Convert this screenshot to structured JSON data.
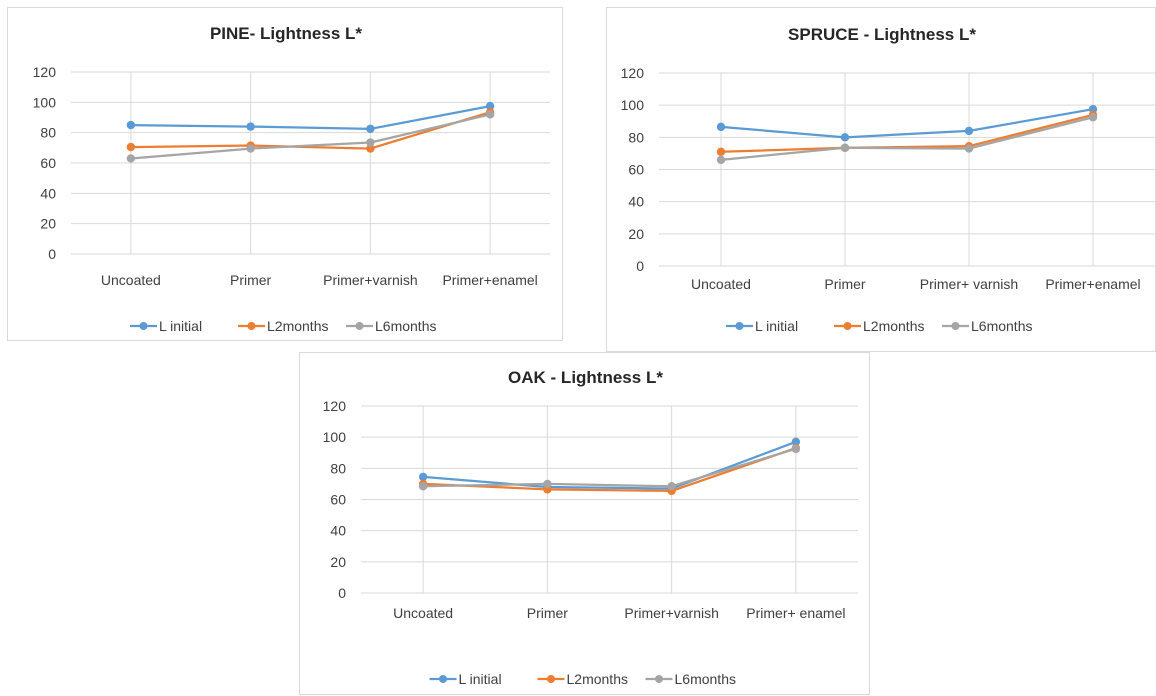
{
  "colors": {
    "L initial": "#5b9bd5",
    "L2months": "#ed7d31",
    "L6months": "#a5a5a5",
    "grid": "#d9d9d9"
  },
  "chart_data": [
    {
      "type": "line",
      "title": "PINE- Lightness L*",
      "categories": [
        "Uncoated",
        "Primer",
        "Primer+varnish",
        "Primer+enamel"
      ],
      "ylim": [
        0,
        120
      ],
      "yticks": [
        0,
        20,
        40,
        60,
        80,
        100,
        120
      ],
      "grid": true,
      "legend": "bottom",
      "series": [
        {
          "name": "L initial",
          "values": [
            85,
            84,
            82.5,
            97.5
          ]
        },
        {
          "name": "L2months",
          "values": [
            70.5,
            71.5,
            69.5,
            93.5
          ]
        },
        {
          "name": "L6months",
          "values": [
            63,
            69.5,
            73.5,
            92
          ]
        }
      ]
    },
    {
      "type": "line",
      "title": "SPRUCE - Lightness L*",
      "categories": [
        "Uncoated",
        "Primer",
        "Primer+ varnish",
        "Primer+enamel"
      ],
      "ylim": [
        0,
        120
      ],
      "yticks": [
        0,
        20,
        40,
        60,
        80,
        100,
        120
      ],
      "grid": true,
      "legend": "bottom",
      "series": [
        {
          "name": "L initial",
          "values": [
            86.5,
            80,
            84,
            97.5
          ]
        },
        {
          "name": "L2months",
          "values": [
            71,
            73.5,
            74.5,
            94
          ]
        },
        {
          "name": "L6months",
          "values": [
            66,
            73.5,
            73,
            92.5
          ]
        }
      ]
    },
    {
      "type": "line",
      "title": "OAK - Lightness L*",
      "categories": [
        "Uncoated",
        "Primer",
        "Primer+varnish",
        "Primer+ enamel"
      ],
      "ylim": [
        0,
        120
      ],
      "yticks": [
        0,
        20,
        40,
        60,
        80,
        100,
        120
      ],
      "grid": true,
      "legend": "bottom",
      "series": [
        {
          "name": "L initial",
          "values": [
            74.5,
            68,
            67,
            97
          ]
        },
        {
          "name": "L2months",
          "values": [
            70,
            66.5,
            65.5,
            93
          ]
        },
        {
          "name": "L6months",
          "values": [
            68.5,
            70,
            68.5,
            92.5
          ]
        }
      ]
    }
  ]
}
